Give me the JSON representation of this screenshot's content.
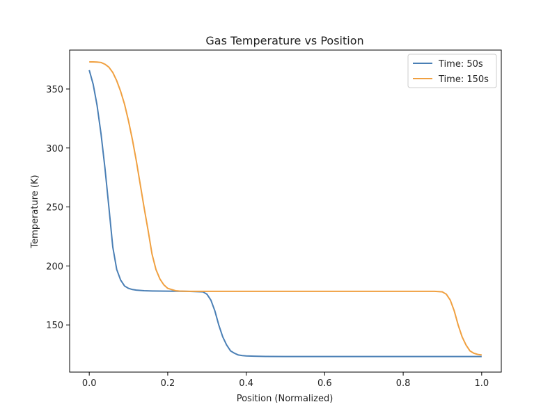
{
  "chart_data": {
    "type": "line",
    "title": "Gas Temperature vs Position",
    "xlabel": "Position (Normalized)",
    "ylabel": "Temperature (K)",
    "xlim": [
      -0.05,
      1.05
    ],
    "ylim": [
      110,
      383
    ],
    "xticks": [
      0.0,
      0.2,
      0.4,
      0.6,
      0.8,
      1.0
    ],
    "xtick_labels": [
      "0.0",
      "0.2",
      "0.4",
      "0.6",
      "0.8",
      "1.0"
    ],
    "yticks": [
      150,
      200,
      250,
      300,
      350
    ],
    "ytick_labels": [
      "150",
      "200",
      "250",
      "300",
      "350"
    ],
    "grid": false,
    "legend_position": "top-right",
    "series": [
      {
        "name": "Time: 50s",
        "color": "#4a7fb5",
        "x": [
          0.0,
          0.01,
          0.02,
          0.03,
          0.04,
          0.05,
          0.06,
          0.07,
          0.08,
          0.09,
          0.1,
          0.11,
          0.12,
          0.14,
          0.16,
          0.2,
          0.25,
          0.29,
          0.3,
          0.31,
          0.32,
          0.33,
          0.34,
          0.35,
          0.36,
          0.37,
          0.38,
          0.39,
          0.4,
          0.42,
          0.45,
          0.5,
          0.6,
          0.7,
          0.8,
          0.9,
          1.0
        ],
        "values": [
          366,
          354,
          336,
          312,
          283,
          250,
          216,
          197,
          188,
          183,
          181,
          180,
          179.5,
          179,
          178.8,
          178.6,
          178.5,
          178,
          176,
          171,
          162,
          150,
          140,
          133,
          128,
          126,
          124.5,
          124,
          123.7,
          123.5,
          123.3,
          123.2,
          123.2,
          123.2,
          123.2,
          123.2,
          123.2
        ]
      },
      {
        "name": "Time: 150s",
        "color": "#f0a040",
        "x": [
          0.0,
          0.01,
          0.02,
          0.03,
          0.04,
          0.05,
          0.06,
          0.07,
          0.08,
          0.09,
          0.1,
          0.11,
          0.12,
          0.13,
          0.14,
          0.15,
          0.16,
          0.17,
          0.18,
          0.19,
          0.2,
          0.21,
          0.22,
          0.23,
          0.25,
          0.3,
          0.4,
          0.5,
          0.6,
          0.7,
          0.8,
          0.88,
          0.9,
          0.91,
          0.92,
          0.93,
          0.94,
          0.95,
          0.96,
          0.97,
          0.98,
          0.99,
          1.0
        ],
        "values": [
          373,
          373,
          372.8,
          372.5,
          371,
          368.5,
          364,
          357,
          348,
          337,
          323,
          307,
          289,
          269,
          249,
          230,
          210,
          197,
          189,
          184,
          181,
          180,
          179,
          178.7,
          178.5,
          178.5,
          178.5,
          178.5,
          178.5,
          178.5,
          178.5,
          178.5,
          178,
          176,
          171,
          162,
          150,
          140,
          133,
          128,
          126,
          125,
          124.5
        ]
      }
    ]
  }
}
